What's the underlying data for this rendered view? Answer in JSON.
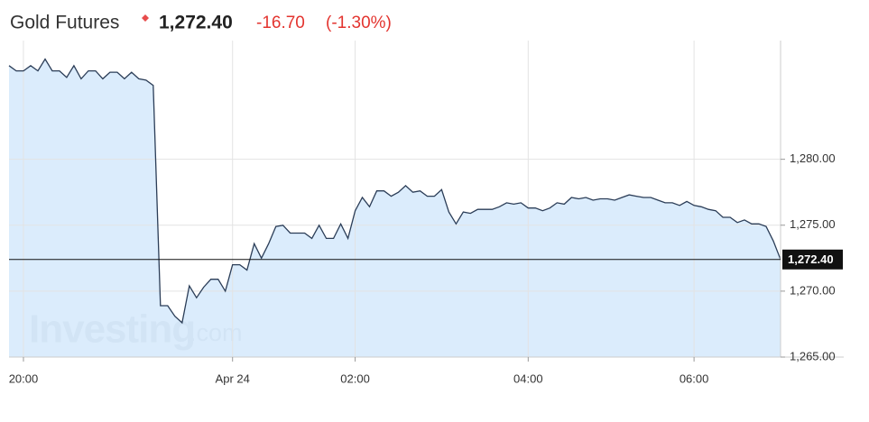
{
  "header": {
    "title": "Gold Futures",
    "change": "-16.70",
    "change_pct": "(-1.30%)"
  },
  "chart_data": {
    "type": "area",
    "watermark": [
      "Investing",
      ".com"
    ],
    "color": "#2b3d57",
    "fill": "#d5e9fb",
    "current_price": {
      "value": 1272.4,
      "label": "1,272.40"
    },
    "values": [
      1287.1,
      1286.7,
      1286.7,
      1287.1,
      1286.7,
      1287.6,
      1286.7,
      1286.7,
      1286.2,
      1287.1,
      1286.1,
      1286.7,
      1286.7,
      1286.1,
      1286.6,
      1286.6,
      1286.1,
      1286.6,
      1286.1,
      1286.0,
      1285.6,
      1268.9,
      1268.9,
      1268.1,
      1267.6,
      1270.4,
      1269.5,
      1270.3,
      1270.9,
      1270.9,
      1270.0,
      1272.0,
      1272.0,
      1271.6,
      1273.6,
      1272.5,
      1273.6,
      1274.9,
      1275.0,
      1274.4,
      1274.4,
      1274.4,
      1274.0,
      1275.0,
      1274.0,
      1274.0,
      1275.1,
      1274.0,
      1276.1,
      1277.1,
      1276.4,
      1277.6,
      1277.6,
      1277.2,
      1277.5,
      1278.0,
      1277.5,
      1277.6,
      1277.2,
      1277.2,
      1277.7,
      1276.0,
      1275.1,
      1276.0,
      1275.9,
      1276.2,
      1276.2,
      1276.2,
      1276.4,
      1276.7,
      1276.6,
      1276.7,
      1276.3,
      1276.3,
      1276.1,
      1276.3,
      1276.7,
      1276.6,
      1277.1,
      1277.0,
      1277.1,
      1276.9,
      1277.0,
      1277.0,
      1276.9,
      1277.1,
      1277.3,
      1277.2,
      1277.1,
      1277.1,
      1276.9,
      1276.7,
      1276.7,
      1276.5,
      1276.8,
      1276.5,
      1276.4,
      1276.2,
      1276.1,
      1275.6,
      1275.6,
      1275.2,
      1275.4,
      1275.1,
      1275.1,
      1274.9,
      1273.8,
      1272.4
    ],
    "xlim": [
      0,
      107
    ],
    "xticks": [
      {
        "value": 2,
        "label": "20:00"
      },
      {
        "value": 31,
        "label": "Apr 24"
      },
      {
        "value": 48,
        "label": "02:00"
      },
      {
        "value": 72,
        "label": "04:00"
      },
      {
        "value": 95,
        "label": "06:00"
      }
    ],
    "ylim": [
      1265,
      1289
    ],
    "yticks": [
      {
        "value": 1265,
        "label": "1,265.00"
      },
      {
        "value": 1270,
        "label": "1,270.00"
      },
      {
        "value": 1275,
        "label": "1,275.00"
      },
      {
        "value": 1280,
        "label": "1,280.00"
      }
    ],
    "grid": true
  }
}
